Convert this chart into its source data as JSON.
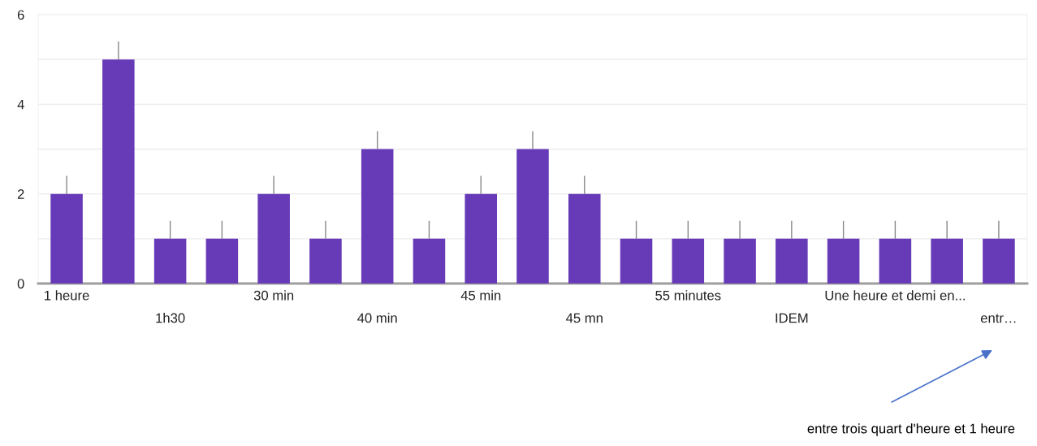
{
  "chart_data": {
    "type": "bar",
    "categories": [
      "1 heure",
      null,
      "1h30",
      null,
      "30 min",
      null,
      "40 min",
      null,
      "45 min",
      null,
      "45 mn",
      null,
      "55 minutes",
      null,
      "IDEM",
      null,
      "Une heure et demi en...",
      null,
      "entr…"
    ],
    "values": [
      2,
      5,
      1,
      1,
      2,
      1,
      3,
      1,
      2,
      3,
      2,
      1,
      1,
      1,
      1,
      1,
      1,
      1,
      1
    ],
    "errors": [
      [
        2,
        2.4
      ],
      [
        5,
        5.4
      ],
      [
        1,
        1.4
      ],
      [
        1,
        1.4
      ],
      [
        2,
        2.4
      ],
      [
        1,
        1.4
      ],
      [
        3,
        3.4
      ],
      [
        1,
        1.4
      ],
      [
        2,
        2.4
      ],
      [
        3,
        3.4
      ],
      [
        2,
        2.4
      ],
      [
        1,
        1.4
      ],
      [
        1,
        1.4
      ],
      [
        1,
        1.4
      ],
      [
        1,
        1.4
      ],
      [
        1,
        1.4
      ],
      [
        1,
        1.4
      ],
      [
        1,
        1.4
      ],
      [
        1,
        1.4
      ]
    ],
    "color": "#673ab7",
    "ylim": [
      0,
      6
    ],
    "yticks": [
      0,
      {
        "value": 1,
        "label": null
      },
      2,
      {
        "value": 3,
        "label": null
      },
      4,
      {
        "value": 5,
        "label": null
      },
      6
    ],
    "grid": "y",
    "annotations": [
      "entre trois quart d'heure et 1 heure"
    ]
  }
}
